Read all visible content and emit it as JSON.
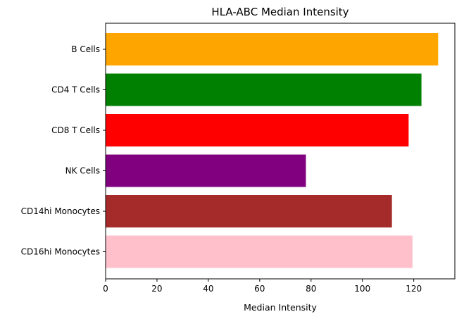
{
  "chart_data": {
    "type": "bar",
    "orientation": "horizontal",
    "title": "HLA-ABC Median Intensity",
    "xlabel": "Median Intensity",
    "ylabel": "",
    "categories": [
      "B Cells",
      "CD4 T Cells",
      "CD8 T Cells",
      "NK Cells",
      "CD14hi Monocytes",
      "CD16hi Monocytes"
    ],
    "values": [
      129.5,
      123,
      118,
      78,
      111.5,
      119.5
    ],
    "colors": [
      "#ffa500",
      "#008000",
      "#ff0000",
      "#800080",
      "#a52a2a",
      "#ffc0cb"
    ],
    "xlim": [
      0,
      136
    ],
    "xticks": [
      0,
      20,
      40,
      60,
      80,
      100,
      120
    ],
    "grid": false,
    "legend": "none"
  }
}
